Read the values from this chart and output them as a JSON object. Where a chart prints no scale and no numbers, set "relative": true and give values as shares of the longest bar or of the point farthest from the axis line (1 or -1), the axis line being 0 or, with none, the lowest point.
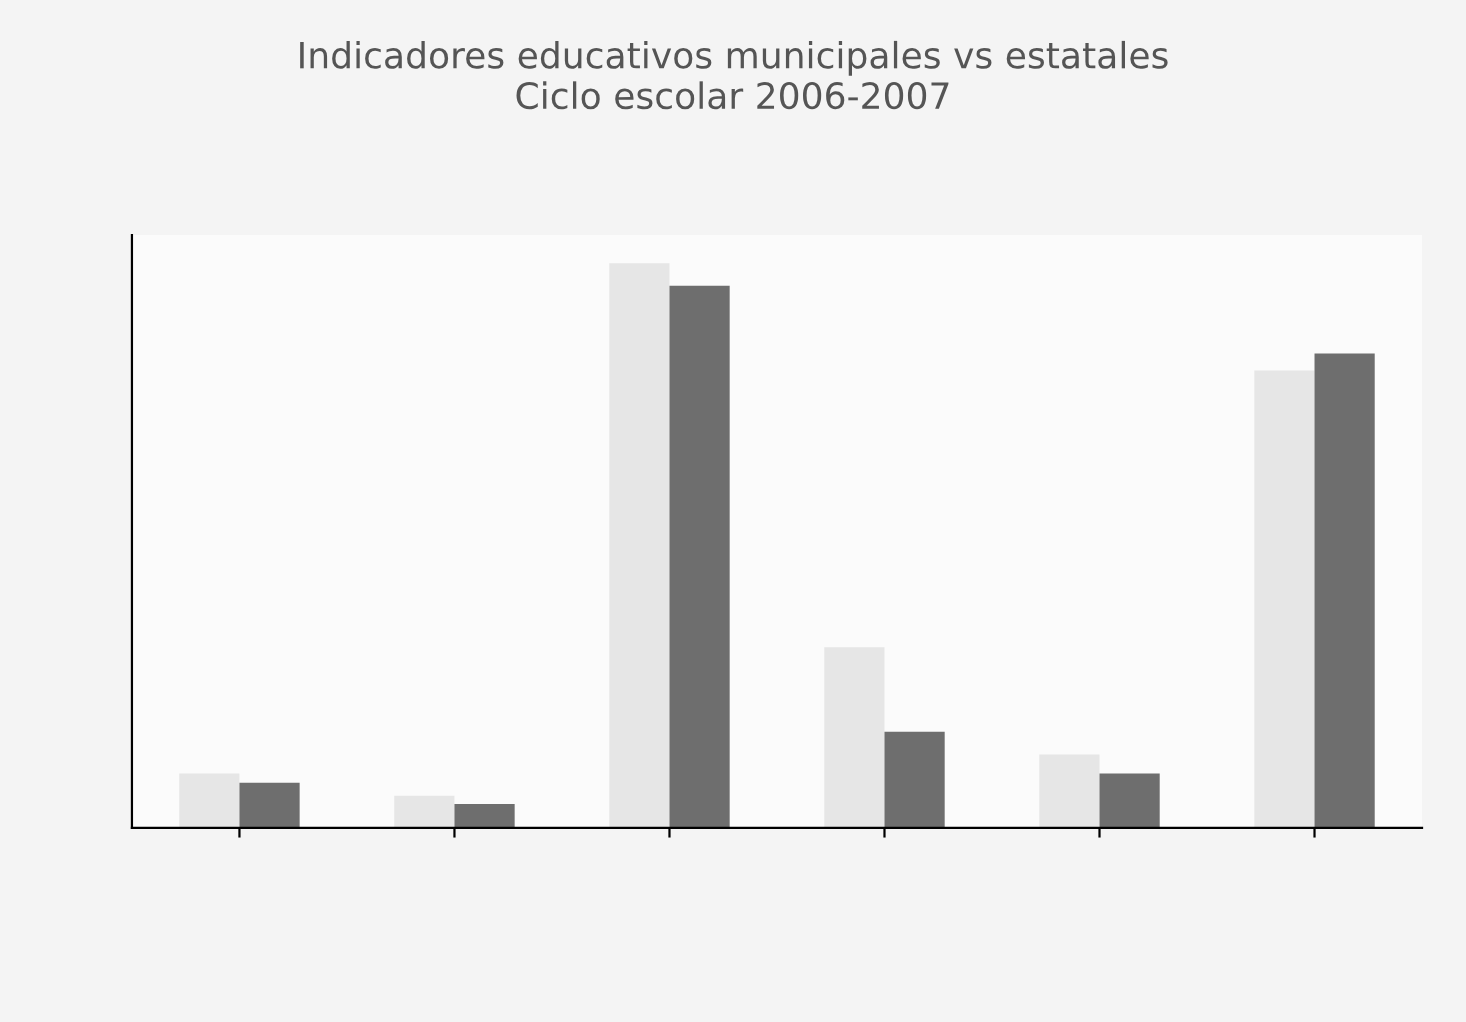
{
  "chart_data": {
    "type": "bar",
    "title": "Indicadores educativos municipales vs estatales\nCiclo escolar 2006-2007",
    "relative": true,
    "categories": [
      null,
      null,
      null,
      null,
      null,
      null
    ],
    "series": [
      {
        "color": "#e6e6e6",
        "values": [
          0.096,
          0.057,
          1,
          0.32,
          0.13,
          0.81
        ]
      },
      {
        "color": "#6e6e6e",
        "values": [
          0.08,
          0.042,
          0.96,
          0.17,
          0.096,
          0.84
        ]
      }
    ],
    "grid": false
  }
}
